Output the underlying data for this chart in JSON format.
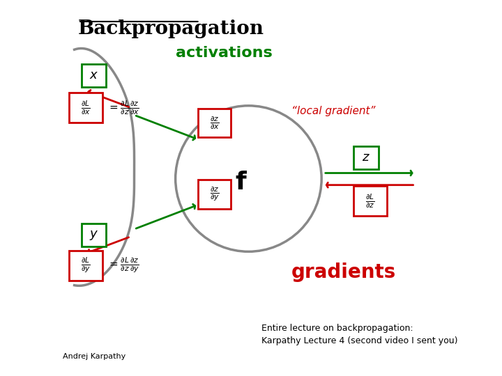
{
  "title": "Backpropagation",
  "activations_label": "activations",
  "local_gradient_label": "“local gradient”",
  "gradients_label": "gradients",
  "f_label": "f",
  "bottom_left_text": "Andrej Karpathy",
  "bottom_right_text": "Entire lecture on backpropagation:\nKarpathy Lecture 4 (second video I sent you)",
  "bg_color": "#ffffff",
  "green": "#008000",
  "red": "#cc0000",
  "gray": "#888888"
}
